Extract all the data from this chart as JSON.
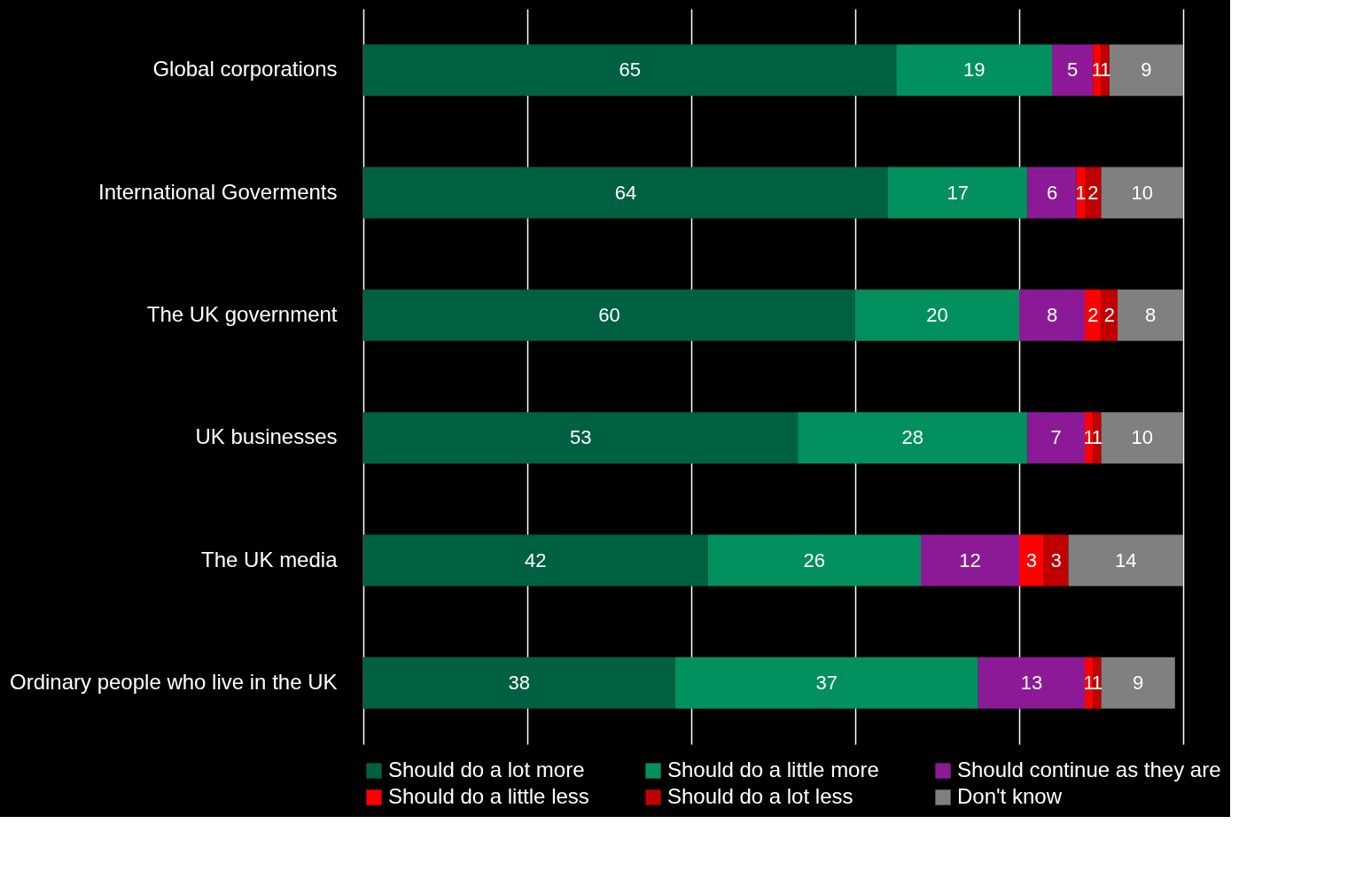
{
  "chart_data": {
    "type": "bar",
    "orientation": "horizontal",
    "stacked": true,
    "data_labels": true,
    "grid": "x",
    "legend": "bottom",
    "tick_labels": "y",
    "categories": [
      "Global corporations",
      "International Goverments",
      "The UK government",
      "UK businesses",
      "The UK media",
      "Ordinary people who live in the UK"
    ],
    "xlim": [
      0,
      100
    ],
    "xticks": [
      {
        "value": 0,
        "label": null
      },
      {
        "value": 20,
        "label": null
      },
      {
        "value": 40,
        "label": null
      },
      {
        "value": 60,
        "label": null
      },
      {
        "value": 80,
        "label": null
      },
      {
        "value": 100,
        "label": null
      }
    ],
    "series": [
      {
        "name": "Should do a lot more",
        "color": "#006142",
        "values": [
          65,
          64,
          60,
          53,
          42,
          38
        ]
      },
      {
        "name": "Should do a little more",
        "color": "#02905f",
        "values": [
          19,
          17,
          20,
          28,
          26,
          37
        ]
      },
      {
        "name": "Should continue as they are",
        "color": "#8c1a96",
        "values": [
          5,
          6,
          8,
          7,
          12,
          13
        ]
      },
      {
        "name": "Should do a little less",
        "color": "#ff0000",
        "values": [
          1,
          1,
          2,
          1,
          3,
          1
        ]
      },
      {
        "name": "Should do a lot less",
        "color": "#c00000",
        "values": [
          1,
          2,
          2,
          1,
          3,
          1
        ]
      },
      {
        "name": "Don't know",
        "color": "#808080",
        "values": [
          9,
          10,
          8,
          10,
          14,
          9
        ]
      }
    ]
  }
}
